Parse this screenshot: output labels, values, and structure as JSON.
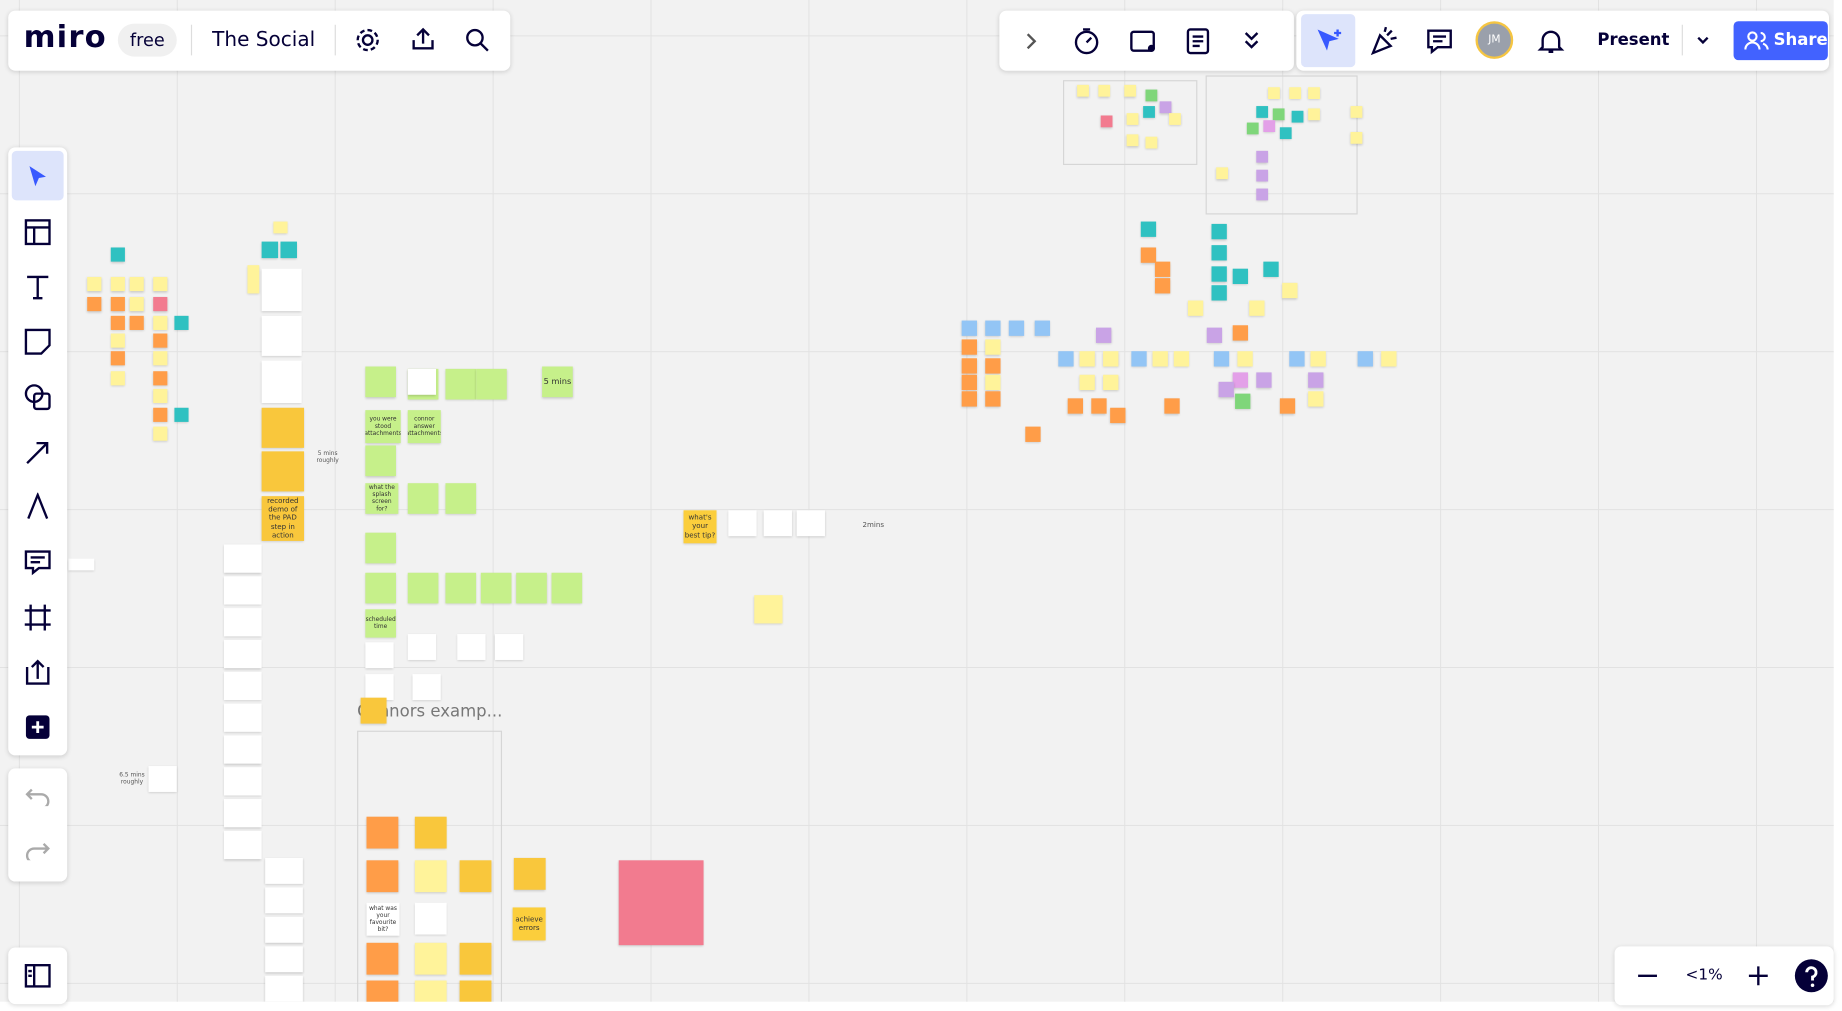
{
  "header": {
    "logo": "miro",
    "plan": "free",
    "board_name": "The Social"
  },
  "toolbar": {
    "avatar": "JM",
    "present": "Present",
    "share": "Share"
  },
  "zoom": {
    "level": "<1%"
  },
  "board": {
    "frame_title": "Connors examp...",
    "notes": [
      {
        "text": "5 mins"
      },
      {
        "text": "you were stood attachments"
      },
      {
        "text": "connor answer attachments"
      },
      {
        "text": "what the splash screen for?"
      },
      {
        "text": "scheduled time"
      },
      {
        "text": "recorded demo of the PAD step in action"
      },
      {
        "text": "5 mins roughly"
      },
      {
        "text": "what's your best tip?"
      },
      {
        "text": "2mins"
      },
      {
        "text": "achieve errors"
      },
      {
        "text": "what was your favourite bit?"
      },
      {
        "text": "6.5 mins roughly"
      }
    ]
  }
}
